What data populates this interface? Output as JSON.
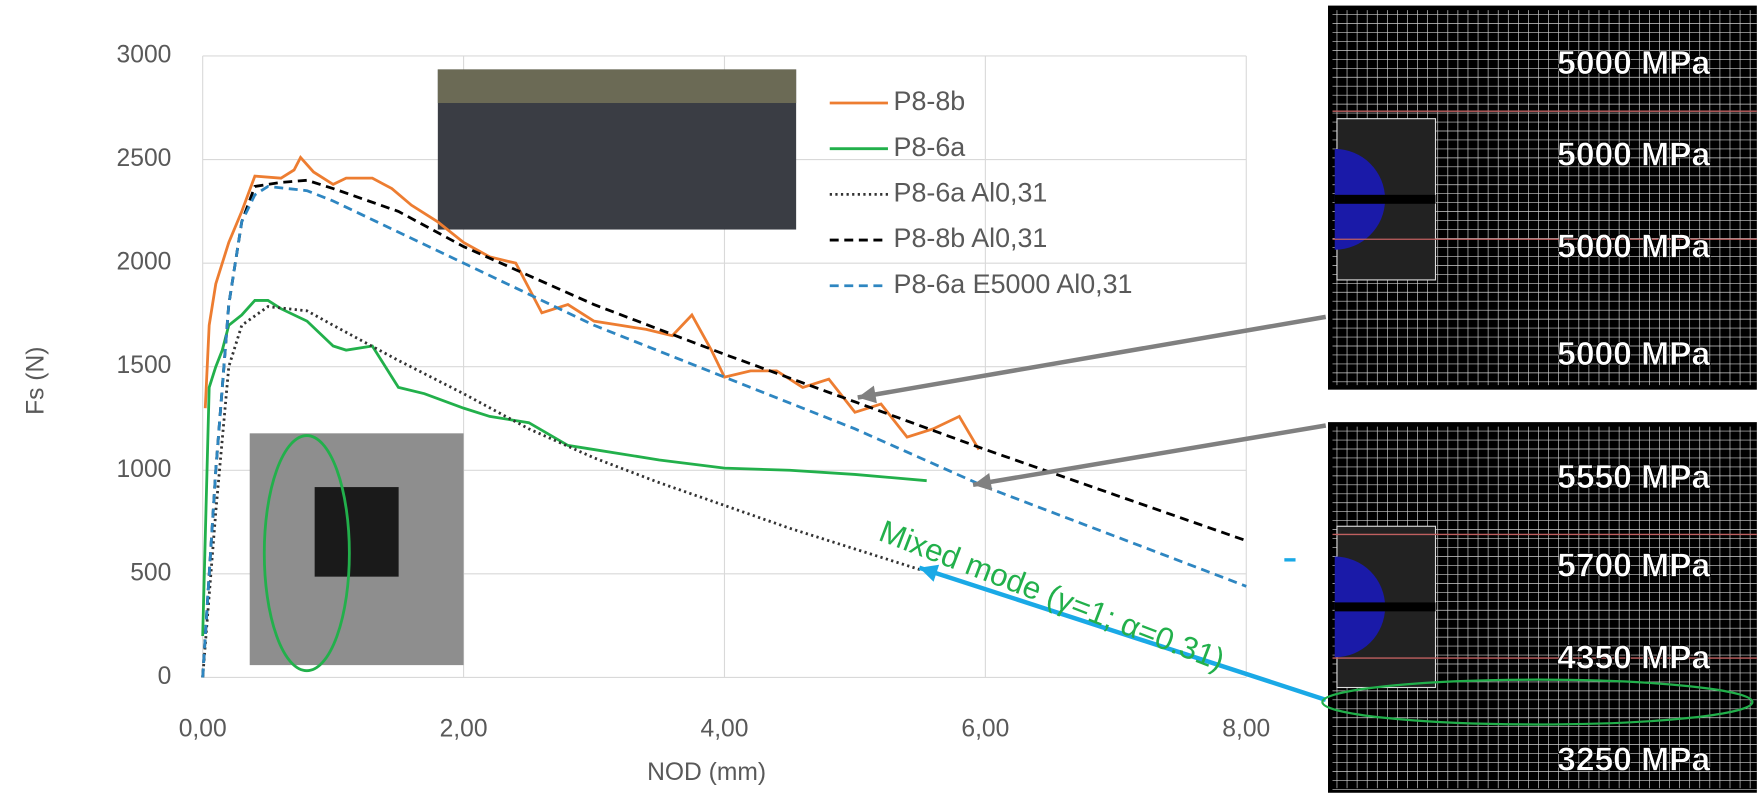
{
  "chart_data": {
    "type": "line",
    "x_label": "NOD (mm)",
    "y_label": "Fs (N)",
    "xlim": [
      0,
      8
    ],
    "ylim": [
      0,
      3000
    ],
    "xticks": [
      {
        "value": 0,
        "label": "0,00"
      },
      {
        "value": 2,
        "label": "2,00"
      },
      {
        "value": 4,
        "label": "4,00"
      },
      {
        "value": 6,
        "label": "6,00"
      },
      {
        "value": 8,
        "label": "8,00"
      }
    ],
    "yticks": [
      0,
      500,
      1000,
      1500,
      2000,
      2500,
      3000
    ],
    "grid": true,
    "series": [
      {
        "name": "P8-8b",
        "color": "#ed7d31",
        "dash": "solid",
        "x": [
          0.02,
          0.05,
          0.1,
          0.2,
          0.3,
          0.4,
          0.6,
          0.7,
          0.75,
          0.85,
          1.0,
          1.1,
          1.3,
          1.45,
          1.6,
          1.8,
          2.0,
          2.2,
          2.4,
          2.6,
          2.8,
          3.0,
          3.2,
          3.4,
          3.6,
          3.75,
          3.9,
          4.0,
          4.2,
          4.4,
          4.6,
          4.8,
          5.0,
          5.2,
          5.4,
          5.6,
          5.8,
          5.95
        ],
        "values": [
          1300,
          1700,
          1900,
          2100,
          2250,
          2420,
          2410,
          2450,
          2510,
          2440,
          2380,
          2410,
          2410,
          2360,
          2280,
          2200,
          2100,
          2030,
          2000,
          1760,
          1800,
          1720,
          1700,
          1680,
          1650,
          1750,
          1580,
          1450,
          1480,
          1480,
          1400,
          1440,
          1280,
          1320,
          1160,
          1200,
          1260,
          1100
        ]
      },
      {
        "name": "P8-6a",
        "color": "#22b04b",
        "dash": "solid",
        "x": [
          0,
          0.05,
          0.1,
          0.15,
          0.2,
          0.3,
          0.4,
          0.5,
          0.6,
          0.8,
          1.0,
          1.1,
          1.3,
          1.5,
          1.7,
          2.0,
          2.2,
          2.5,
          2.8,
          3.0,
          3.5,
          4.0,
          4.5,
          5.0,
          5.55
        ],
        "values": [
          200,
          1400,
          1500,
          1580,
          1700,
          1750,
          1820,
          1820,
          1780,
          1720,
          1600,
          1580,
          1600,
          1400,
          1370,
          1300,
          1260,
          1230,
          1120,
          1100,
          1050,
          1010,
          1000,
          980,
          950
        ]
      },
      {
        "name": "P8-6a Al0,31",
        "color": "#333333",
        "dash": "dotted",
        "x": [
          0,
          0.1,
          0.2,
          0.3,
          0.5,
          0.8,
          1.0,
          1.5,
          2.0,
          2.5,
          3.0,
          3.5,
          4.0,
          4.5,
          5.0,
          5.5
        ],
        "values": [
          0,
          800,
          1500,
          1700,
          1790,
          1770,
          1700,
          1530,
          1370,
          1200,
          1060,
          940,
          830,
          720,
          620,
          520
        ]
      },
      {
        "name": "P8-8b Al0,31",
        "color": "#000000",
        "dash": "dashed",
        "x": [
          0,
          0.1,
          0.2,
          0.3,
          0.4,
          0.6,
          0.8,
          1.0,
          1.5,
          2.0,
          3.0,
          4.0,
          5.0,
          6.0,
          7.0,
          8.0
        ],
        "values": [
          0,
          1000,
          1800,
          2200,
          2370,
          2390,
          2400,
          2360,
          2250,
          2080,
          1800,
          1560,
          1330,
          1100,
          880,
          660
        ]
      },
      {
        "name": "P8-6a E5000 Al0,31",
        "color": "#2e86c1",
        "dash": "dashed",
        "x": [
          0,
          0.1,
          0.2,
          0.3,
          0.4,
          0.5,
          0.8,
          1.0,
          1.5,
          2.0,
          3.0,
          4.0,
          5.0,
          6.0,
          7.0,
          8.0
        ],
        "values": [
          0,
          1000,
          1800,
          2200,
          2330,
          2370,
          2350,
          2300,
          2150,
          2000,
          1700,
          1450,
          1200,
          920,
          680,
          440
        ]
      }
    ],
    "annotation": "Mixed mode (γ=1; α=0.31)"
  },
  "mesh_panels": [
    {
      "labels": [
        "5000 MPa",
        "5000 MPa",
        "5000 MPa",
        "5000 MPa"
      ]
    },
    {
      "labels": [
        "5550 MPa",
        "5700 MPa",
        "4350 MPa",
        "3250 MPa"
      ]
    }
  ]
}
